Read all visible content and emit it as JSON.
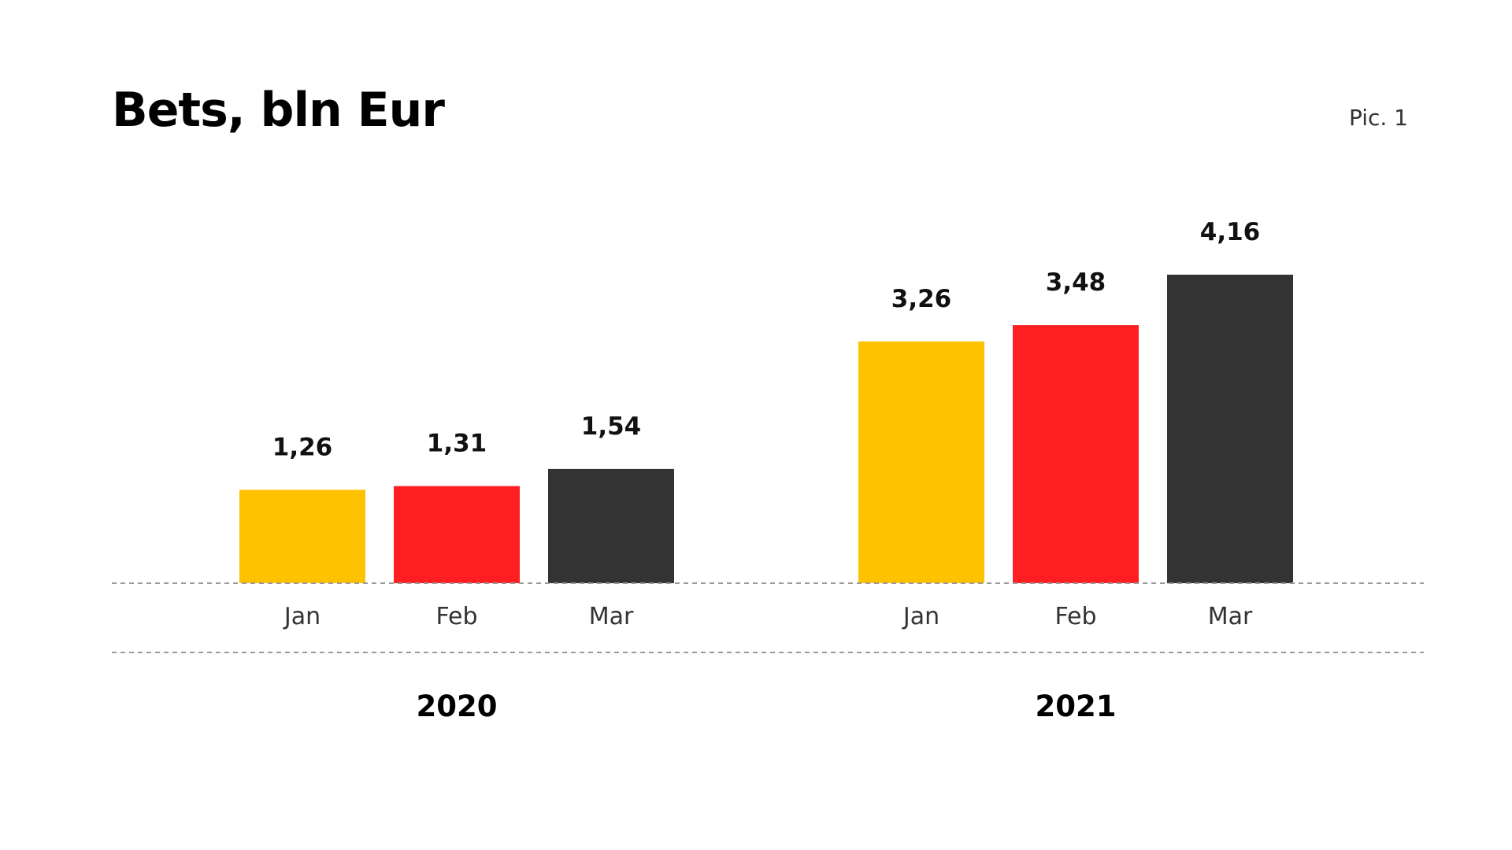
{
  "header": {
    "title": "Bets, bln Eur",
    "pic_label": "Pic. 1"
  },
  "chart_data": {
    "type": "bar",
    "title": "Bets, bln Eur",
    "xlabel": "",
    "ylabel": "",
    "ylim": [
      0,
      4.16
    ],
    "grid": false,
    "groups": [
      {
        "label": "2020",
        "bars": [
          {
            "category": "Jan",
            "value": 1.26,
            "label": "1,26",
            "color": "#FFC200"
          },
          {
            "category": "Feb",
            "value": 1.31,
            "label": "1,31",
            "color": "#FF1F22"
          },
          {
            "category": "Mar",
            "value": 1.54,
            "label": "1,54",
            "color": "#333333"
          }
        ]
      },
      {
        "label": "2021",
        "bars": [
          {
            "category": "Jan",
            "value": 3.26,
            "label": "3,26",
            "color": "#FFC200"
          },
          {
            "category": "Feb",
            "value": 3.48,
            "label": "3,48",
            "color": "#FF1F22"
          },
          {
            "category": "Mar",
            "value": 4.16,
            "label": "4,16",
            "color": "#333333"
          }
        ]
      }
    ]
  }
}
